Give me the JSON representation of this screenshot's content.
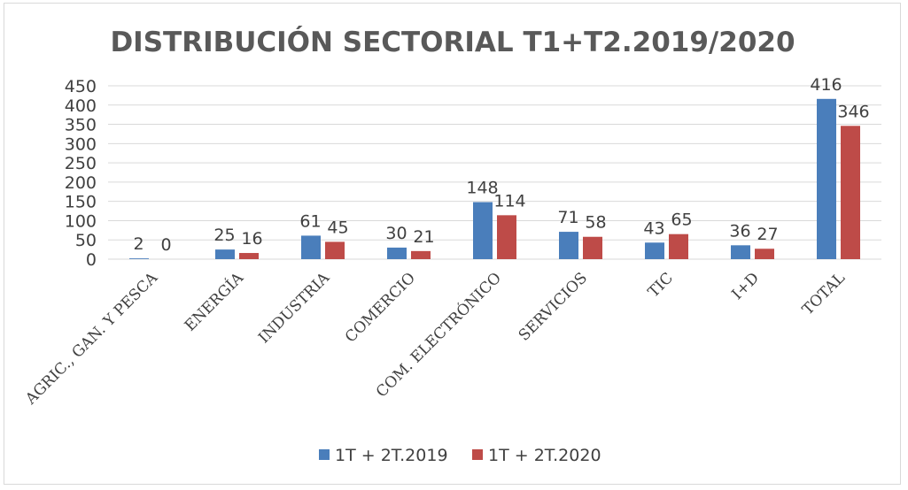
{
  "chart_data": {
    "type": "bar",
    "title": "DISTRIBUCIÓN SECTORIAL T1+T2.2019/2020",
    "xlabel": "",
    "ylabel": "",
    "ylim": [
      0,
      450
    ],
    "yticks": [
      0,
      50,
      100,
      150,
      200,
      250,
      300,
      350,
      400,
      450
    ],
    "grid": true,
    "legend_position": "bottom",
    "categories": [
      "AGRIC., GAN. Y PESCA",
      "ENERGÍA",
      "INDUSTRIA",
      "COMERCIO",
      "COM. ELECTRÓNICO",
      "SERVICIOS",
      "TIC",
      "I+D",
      "TOTAL"
    ],
    "series": [
      {
        "name": "1T + 2T.2019",
        "color": "#4a7ebb",
        "values": [
          2,
          25,
          61,
          30,
          148,
          71,
          43,
          36,
          416
        ]
      },
      {
        "name": "1T + 2T.2020",
        "color": "#be4b48",
        "values": [
          0,
          16,
          45,
          21,
          114,
          58,
          65,
          27,
          346
        ]
      }
    ]
  }
}
